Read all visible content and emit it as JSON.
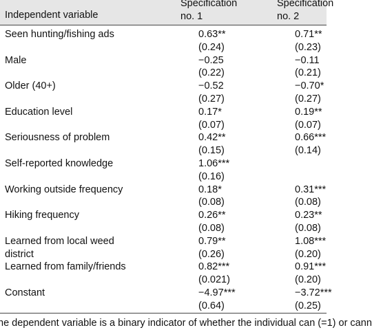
{
  "header": {
    "label": "Independent variable",
    "columns": [
      [
        "Specification",
        "no. 1"
      ],
      [
        "Specification",
        "no. 2"
      ]
    ]
  },
  "rows": [
    {
      "label": "Seen hunting/fishing ads",
      "values": [
        [
          "0.63**",
          "(0.24)"
        ],
        [
          "0.71**",
          "(0.23)"
        ]
      ]
    },
    {
      "label": "Male",
      "values": [
        [
          "−0.25",
          "(0.22)"
        ],
        [
          "−0.11",
          "(0.21)"
        ]
      ]
    },
    {
      "label": "Older (40+)",
      "values": [
        [
          "−0.52",
          "(0.27)"
        ],
        [
          "−0.70*",
          "(0.27)"
        ]
      ]
    },
    {
      "label": "Education level",
      "values": [
        [
          "0.17*",
          "(0.07)"
        ],
        [
          "0.19**",
          "(0.07)"
        ]
      ]
    },
    {
      "label": "Seriousness of problem",
      "values": [
        [
          "0.42**",
          "(0.15)"
        ],
        [
          "0.66***",
          "(0.14)"
        ]
      ]
    },
    {
      "label": "Self-reported knowledge",
      "values": [
        [
          "1.06***",
          "(0.16)"
        ],
        null
      ]
    },
    {
      "label": "Working outside frequency",
      "values": [
        [
          "0.18*",
          "(0.08)"
        ],
        [
          "0.31***",
          "(0.08)"
        ]
      ]
    },
    {
      "label": "Hiking frequency",
      "values": [
        [
          "0.26**",
          "(0.08)"
        ],
        [
          "0.23**",
          "(0.08)"
        ]
      ]
    },
    {
      "label": "Learned from local weed district",
      "values": [
        [
          "0.79**",
          "(0.26)"
        ],
        [
          "1.08***",
          "(0.20)"
        ]
      ]
    },
    {
      "label": "Learned from family/friends",
      "values": [
        [
          "0.82***",
          "(0.021)"
        ],
        [
          "0.91***",
          "(0.20)"
        ]
      ]
    },
    {
      "label": "Constant",
      "values": [
        [
          "−4.97***",
          "(0.64)"
        ],
        [
          "−3.72***",
          "(0.25)"
        ]
      ]
    }
  ],
  "footnote": "he dependent variable is a binary indicator of whether the individual can (=1) or cann"
}
